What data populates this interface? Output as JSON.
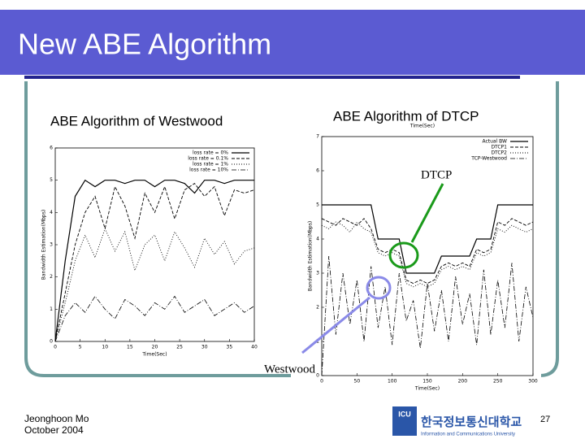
{
  "slide": {
    "title": "New ABE Algorithm",
    "subtitle_left": "ABE Algorithm of Westwood",
    "subtitle_right": "ABE Algorithm of DTCP",
    "annotations": [
      "DTCP",
      "Westwood"
    ],
    "footer": {
      "author": "Jeonghoon Mo",
      "date": "October 2004",
      "page": "27",
      "logo_acronym": "ICU",
      "logo_korean": "한국정보통신대학교",
      "logo_english": "Information and Communications University"
    }
  },
  "chart_data": [
    {
      "type": "line",
      "x_label": "Time(Sec)",
      "y_label": "Bandwidth Estimation(Mbps)",
      "x": [
        0,
        2,
        4,
        6,
        8,
        10,
        12,
        14,
        16,
        18,
        20,
        22,
        24,
        26,
        28,
        30,
        32,
        34,
        36,
        38,
        40
      ],
      "xlim": [
        0,
        40
      ],
      "xticks": [
        0,
        5,
        10,
        15,
        20,
        25,
        30,
        35,
        40
      ],
      "ylim": [
        0,
        6
      ],
      "yticks": [
        0,
        1,
        2,
        3,
        4,
        5,
        6
      ],
      "legend": "upper right",
      "series": [
        {
          "name": "loss rate = 0%",
          "color": "#000000",
          "values": [
            0,
            2.5,
            4.5,
            5,
            4.8,
            5,
            5,
            4.9,
            5,
            5,
            4.8,
            5,
            5,
            4.9,
            4.6,
            5,
            5,
            4.9,
            5,
            5,
            5
          ]
        },
        {
          "name": "loss rate = 0.1%",
          "color": "#000000",
          "values": [
            0,
            1.5,
            3,
            4,
            4.5,
            3.5,
            4.8,
            4.2,
            3.2,
            4.6,
            4,
            4.8,
            3.8,
            4.7,
            4.9,
            4.5,
            4.8,
            3.9,
            4.7,
            4.6,
            4.7
          ]
        },
        {
          "name": "loss rate = 1%",
          "color": "#000000",
          "values": [
            0,
            1.2,
            2.5,
            3.3,
            2.6,
            3.5,
            2.8,
            3.4,
            2.2,
            3,
            3.3,
            2.5,
            3.4,
            2.9,
            2.3,
            3.2,
            2.7,
            3.1,
            2.4,
            2.8,
            2.9
          ]
        },
        {
          "name": "loss rate = 10%",
          "color": "#000000",
          "values": [
            0,
            0.8,
            1.2,
            0.9,
            1.4,
            1,
            0.7,
            1.3,
            1.1,
            0.8,
            1.2,
            1,
            1.4,
            0.9,
            1.1,
            1.3,
            0.8,
            1,
            1.2,
            0.9,
            1.1
          ]
        }
      ]
    },
    {
      "type": "line",
      "x_label": "Time(Sec)",
      "y_label": "Bandwidth Estimation(Mbps)",
      "x": [
        0,
        10,
        20,
        30,
        40,
        50,
        60,
        70,
        80,
        90,
        100,
        110,
        120,
        130,
        140,
        150,
        160,
        170,
        180,
        190,
        200,
        210,
        220,
        230,
        240,
        250,
        260,
        270,
        280,
        290,
        300
      ],
      "xlim": [
        0,
        300
      ],
      "xticks": [
        0,
        50,
        100,
        150,
        200,
        250,
        300
      ],
      "ylim": [
        0,
        7
      ],
      "yticks": [
        0,
        1,
        2,
        3,
        4,
        5,
        6,
        7
      ],
      "legend": "upper right",
      "series": [
        {
          "name": "Actual BW",
          "color": "#000000",
          "values": [
            5,
            5,
            5,
            5,
            5,
            5,
            5,
            5,
            4,
            4,
            4,
            4,
            3,
            3,
            3,
            3,
            3,
            3.5,
            3.5,
            3.5,
            3.5,
            3.5,
            4,
            4,
            4,
            5,
            5,
            5,
            5,
            5,
            5
          ]
        },
        {
          "name": "DTCP1",
          "color": "#000000",
          "values": [
            4.6,
            4.5,
            4.4,
            4.6,
            4.5,
            4.4,
            4.6,
            4.3,
            3.7,
            3.6,
            3.7,
            3.6,
            2.8,
            2.7,
            2.8,
            2.7,
            2.8,
            3.2,
            3.3,
            3.2,
            3.3,
            3.2,
            3.7,
            3.6,
            3.7,
            4.5,
            4.4,
            4.6,
            4.5,
            4.4,
            4.5
          ]
        },
        {
          "name": "DTCP2",
          "color": "#000000",
          "values": [
            4.4,
            4.3,
            4.5,
            4.4,
            4.2,
            4.5,
            4.3,
            4.2,
            3.6,
            3.5,
            3.6,
            3.5,
            2.7,
            2.6,
            2.7,
            2.6,
            2.7,
            3.1,
            3.2,
            3.1,
            3.2,
            3.1,
            3.6,
            3.5,
            3.6,
            4.3,
            4.2,
            4.4,
            4.3,
            4.2,
            4.3
          ]
        },
        {
          "name": "TCP-Westwood",
          "color": "#000000",
          "values": [
            0,
            3.5,
            1.2,
            3,
            1.5,
            2.8,
            1,
            3.2,
            1.4,
            2.6,
            0.9,
            3,
            1.6,
            2.2,
            0.8,
            2.7,
            1.3,
            2.5,
            1,
            2.9,
            1.5,
            2.4,
            0.9,
            3.1,
            1.2,
            2.8,
            1.4,
            3.3,
            1,
            2.6,
            1.7
          ]
        }
      ]
    }
  ]
}
